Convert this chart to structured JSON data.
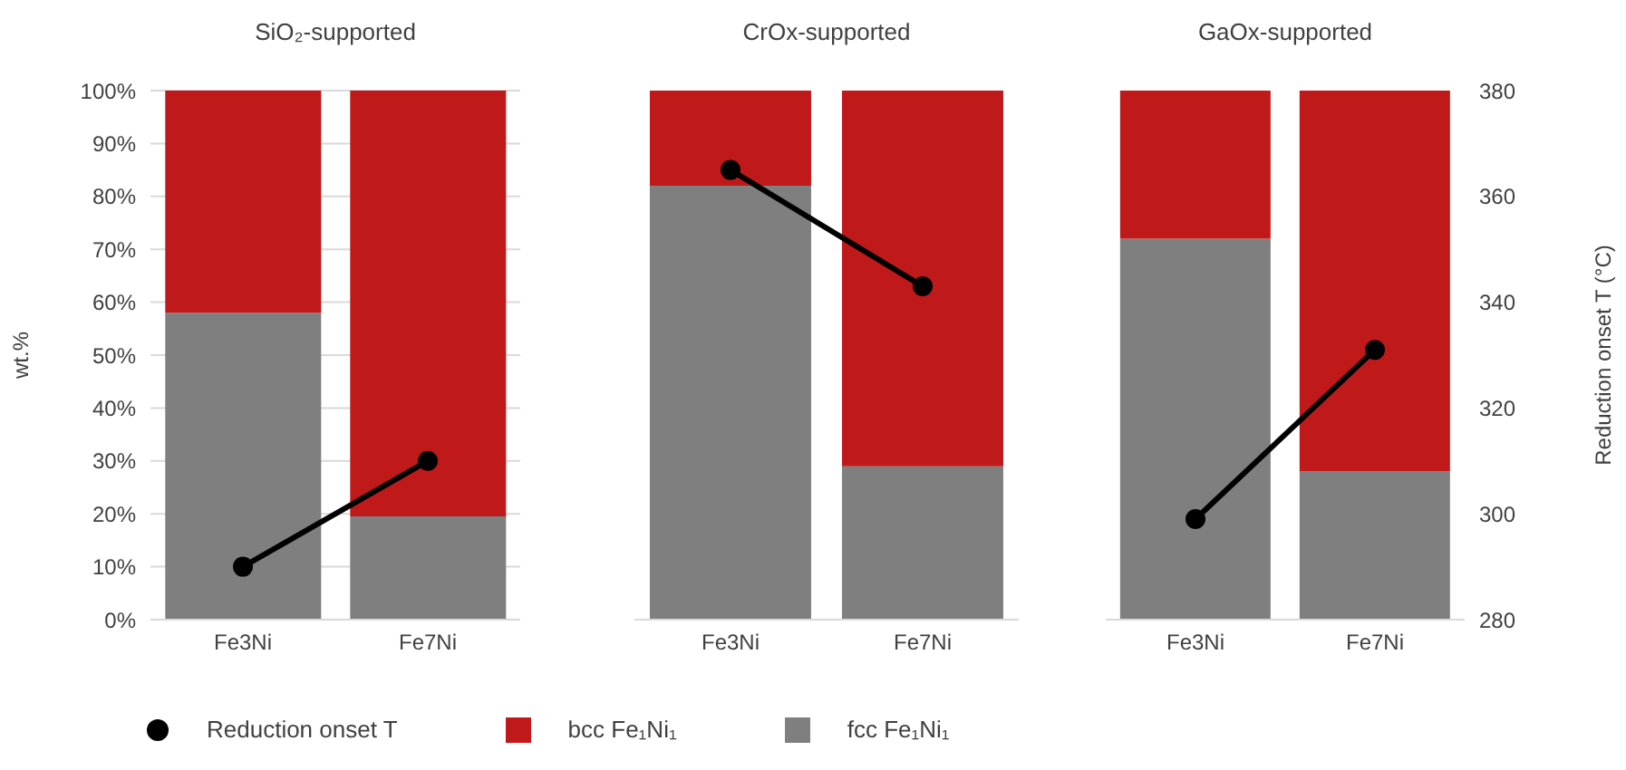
{
  "chart_data": [
    {
      "type": "bar",
      "title": "SiO₂-supported",
      "ylabel": "wt.%",
      "categories": [
        "Fe3Ni",
        "Fe7Ni"
      ],
      "stacked": true,
      "grid": "y",
      "legend": "bottom",
      "tick_labels": [
        "x",
        "y"
      ],
      "marker": "circle",
      "line_style": "solid",
      "ylim": [
        0,
        100
      ],
      "yticks": [
        {
          "value": 0,
          "label": "0%"
        },
        {
          "value": 10,
          "label": "10%"
        },
        {
          "value": 20,
          "label": "20%"
        },
        {
          "value": 30,
          "label": "30%"
        },
        {
          "value": 40,
          "label": "40%"
        },
        {
          "value": 50,
          "label": "50%"
        },
        {
          "value": 60,
          "label": "60%"
        },
        {
          "value": 70,
          "label": "70%"
        },
        {
          "value": 80,
          "label": "80%"
        },
        {
          "value": 90,
          "label": "90%"
        },
        {
          "value": 100,
          "label": "100%"
        }
      ],
      "y2lim": [
        280,
        380
      ],
      "series": [
        {
          "name": "fcc Fe₁Ni₁",
          "color": "#7f7f7f",
          "values": [
            58,
            19.5
          ]
        },
        {
          "name": "bcc Fe₁Ni₁",
          "color": "#c0191a",
          "values": [
            42,
            80.5
          ]
        },
        {
          "name": "Reduction onset T",
          "type": "line",
          "axis": "y2",
          "color": "#000000",
          "values": [
            290,
            310
          ]
        }
      ]
    },
    {
      "type": "bar",
      "title": "CrOx-supported",
      "categories": [
        "Fe3Ni",
        "Fe7Ni"
      ],
      "stacked": true,
      "grid": "y",
      "tick_labels": [
        "x"
      ],
      "marker": "circle",
      "line_style": "solid",
      "ylim": [
        0,
        100
      ],
      "y2lim": [
        280,
        380
      ],
      "series": [
        {
          "color": "#7f7f7f",
          "values": [
            82,
            29
          ]
        },
        {
          "color": "#c0191a",
          "values": [
            18,
            71
          ]
        },
        {
          "type": "line",
          "axis": "y2",
          "color": "#000000",
          "values": [
            365,
            343
          ]
        }
      ]
    },
    {
      "type": "bar",
      "title": "GaOx-supported",
      "y2label": "Reduction onset T (°C)",
      "categories": [
        "Fe3Ni",
        "Fe7Ni"
      ],
      "stacked": true,
      "grid": "y",
      "tick_labels": [
        "x",
        "y2"
      ],
      "marker": "circle",
      "line_style": "solid",
      "ylim": [
        0,
        100
      ],
      "y2lim": [
        280,
        380
      ],
      "y2ticks": [
        280,
        300,
        320,
        340,
        360,
        380
      ],
      "series": [
        {
          "color": "#7f7f7f",
          "values": [
            72,
            28
          ]
        },
        {
          "color": "#c0191a",
          "values": [
            28,
            72
          ]
        },
        {
          "type": "line",
          "axis": "y2",
          "color": "#000000",
          "values": [
            299,
            331
          ]
        }
      ]
    }
  ]
}
